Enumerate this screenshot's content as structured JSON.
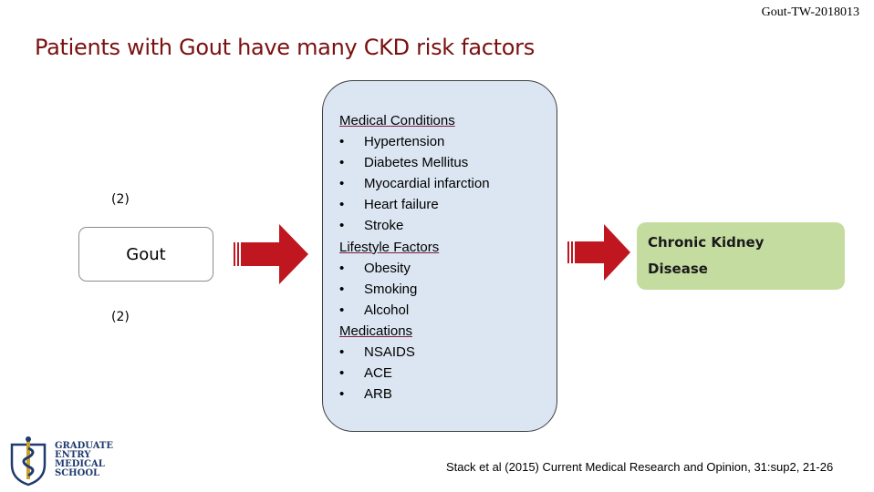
{
  "header": {
    "doc_id": "Gout-TW-2018013"
  },
  "title": "Patients with Gout have many CKD risk factors",
  "left": {
    "ref_top": "(2)",
    "box_label": "Gout",
    "ref_bottom": "(2)"
  },
  "risk_factors": {
    "groups": [
      {
        "heading": "Medical Conditions",
        "items": [
          "Hypertension",
          "Diabetes Mellitus",
          "Myocardial infarction",
          "Heart failure",
          "Stroke"
        ]
      },
      {
        "heading": "Lifestyle Factors",
        "items": [
          "Obesity",
          "Smoking",
          "Alcohol"
        ]
      },
      {
        "heading": "Medications",
        "items": [
          "NSAIDS",
          "ACE",
          "ARB"
        ]
      }
    ],
    "bullet": "•"
  },
  "outcome": {
    "line1": "Chronic Kidney",
    "line2": "Disease"
  },
  "citation": "Stack et al (2015) Current Medical Research and Opinion, 31:sup2, 21-26",
  "logo": {
    "line1": "GRADUATE",
    "line2": "ENTRY",
    "line3": "MEDICAL",
    "line4": "SCHOOL"
  },
  "colors": {
    "title": "#7a1010",
    "arrow": "#c0161f",
    "center_box": "#dce6f2",
    "outcome_box": "#c5dca1",
    "logo": "#1f3a6e"
  }
}
